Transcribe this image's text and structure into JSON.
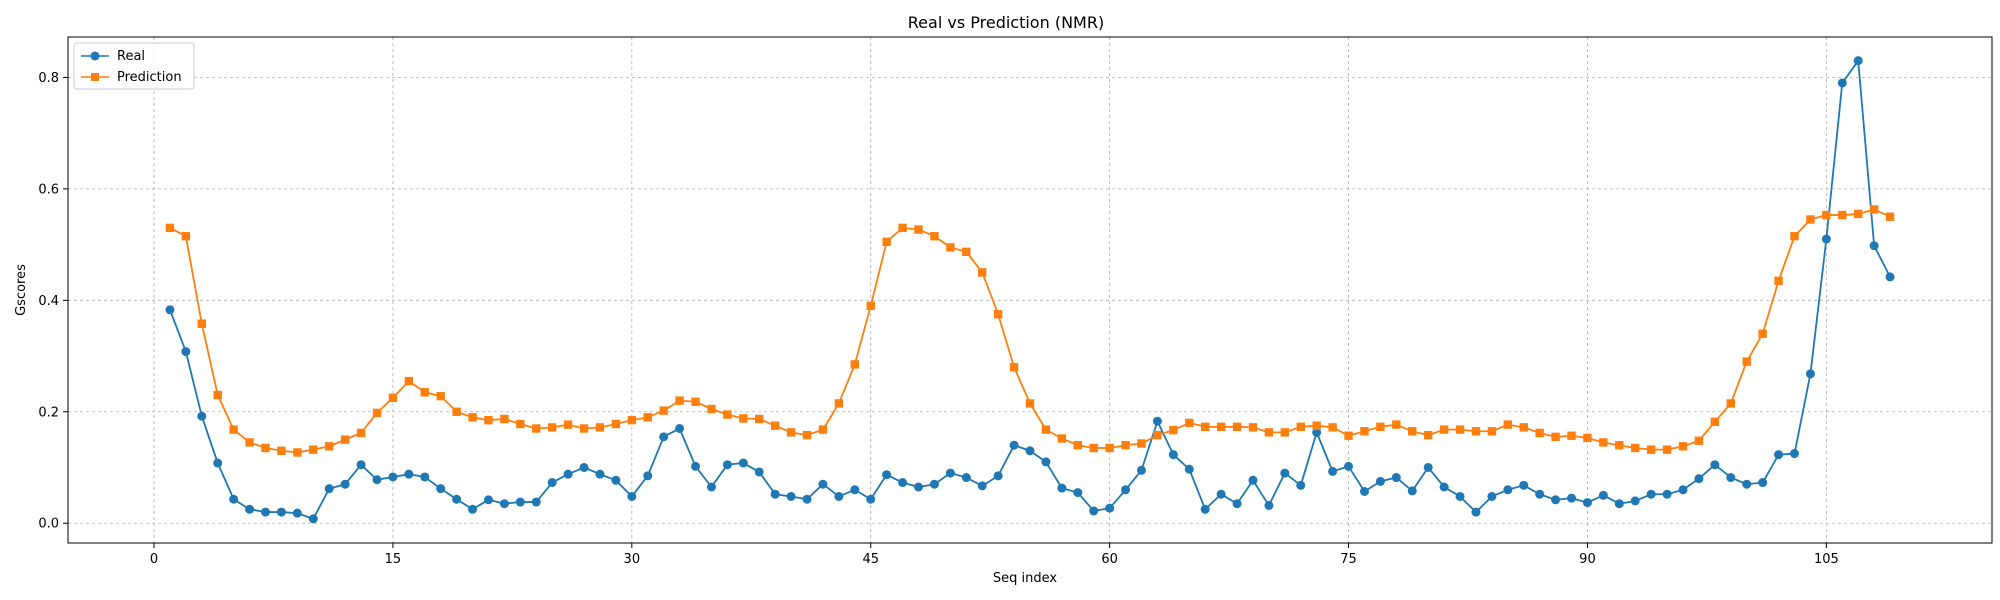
{
  "chart_data": {
    "type": "line",
    "title": "Real vs Prediction (NMR)",
    "xlabel": "Seq index",
    "ylabel": "Gscores",
    "xlim": [
      -5.4,
      115.4
    ],
    "ylim": [
      -0.0355,
      0.8725
    ],
    "xticks": [
      0,
      15,
      30,
      45,
      60,
      75,
      90,
      105
    ],
    "yticks": [
      0.0,
      0.2,
      0.4,
      0.6,
      0.8
    ],
    "ytick_labels": [
      "0.0",
      "0.2",
      "0.4",
      "0.6",
      "0.8"
    ],
    "grid": true,
    "legend_position": "top-left",
    "x": [
      1,
      2,
      3,
      4,
      5,
      6,
      7,
      8,
      9,
      10,
      11,
      12,
      13,
      14,
      15,
      16,
      17,
      18,
      19,
      20,
      21,
      22,
      23,
      24,
      25,
      26,
      27,
      28,
      29,
      30,
      31,
      32,
      33,
      34,
      35,
      36,
      37,
      38,
      39,
      40,
      41,
      42,
      43,
      44,
      45,
      46,
      47,
      48,
      49,
      50,
      51,
      52,
      53,
      54,
      55,
      56,
      57,
      58,
      59,
      60,
      61,
      62,
      63,
      64,
      65,
      66,
      67,
      68,
      69,
      70,
      71,
      72,
      73,
      74,
      75,
      76,
      77,
      78,
      79,
      80,
      81,
      82,
      83,
      84,
      85,
      86,
      87,
      88,
      89,
      90,
      91,
      92,
      93,
      94,
      95,
      96,
      97,
      98,
      99,
      100,
      101,
      102,
      103,
      104,
      105,
      106,
      107,
      108,
      109
    ],
    "series": [
      {
        "name": "Real",
        "color": "#1f77b4",
        "marker": "circle",
        "values": [
          0.383,
          0.308,
          0.192,
          0.108,
          0.043,
          0.025,
          0.02,
          0.02,
          0.018,
          0.008,
          0.062,
          0.07,
          0.105,
          0.078,
          0.083,
          0.088,
          0.083,
          0.062,
          0.043,
          0.025,
          0.042,
          0.035,
          0.038,
          0.038,
          0.073,
          0.088,
          0.1,
          0.088,
          0.077,
          0.048,
          0.085,
          0.155,
          0.17,
          0.102,
          0.065,
          0.105,
          0.108,
          0.092,
          0.052,
          0.048,
          0.043,
          0.07,
          0.048,
          0.06,
          0.043,
          0.087,
          0.073,
          0.065,
          0.07,
          0.09,
          0.082,
          0.067,
          0.085,
          0.14,
          0.13,
          0.11,
          0.063,
          0.055,
          0.022,
          0.027,
          0.06,
          0.095,
          0.183,
          0.123,
          0.097,
          0.025,
          0.052,
          0.035,
          0.077,
          0.032,
          0.09,
          0.068,
          0.163,
          0.093,
          0.102,
          0.057,
          0.075,
          0.082,
          0.058,
          0.1,
          0.065,
          0.048,
          0.02,
          0.048,
          0.06,
          0.068,
          0.052,
          0.042,
          0.045,
          0.037,
          0.05,
          0.035,
          0.04,
          0.052,
          0.052,
          0.06,
          0.08,
          0.105,
          0.082,
          0.07,
          0.073,
          0.123,
          0.125,
          0.268,
          0.51,
          0.79,
          0.83,
          0.498,
          0.442
        ]
      },
      {
        "name": "Prediction",
        "color": "#ff7f0e",
        "marker": "square",
        "values": [
          0.53,
          0.515,
          0.358,
          0.23,
          0.168,
          0.145,
          0.135,
          0.13,
          0.127,
          0.132,
          0.138,
          0.15,
          0.162,
          0.198,
          0.225,
          0.255,
          0.235,
          0.228,
          0.2,
          0.19,
          0.185,
          0.187,
          0.178,
          0.17,
          0.172,
          0.177,
          0.17,
          0.172,
          0.178,
          0.185,
          0.19,
          0.202,
          0.22,
          0.218,
          0.205,
          0.195,
          0.188,
          0.187,
          0.175,
          0.163,
          0.158,
          0.168,
          0.215,
          0.285,
          0.39,
          0.505,
          0.53,
          0.527,
          0.515,
          0.495,
          0.487,
          0.45,
          0.375,
          0.28,
          0.215,
          0.168,
          0.152,
          0.14,
          0.135,
          0.135,
          0.14,
          0.143,
          0.158,
          0.167,
          0.18,
          0.173,
          0.173,
          0.173,
          0.172,
          0.163,
          0.163,
          0.173,
          0.175,
          0.172,
          0.157,
          0.165,
          0.173,
          0.177,
          0.165,
          0.158,
          0.168,
          0.168,
          0.165,
          0.165,
          0.177,
          0.172,
          0.162,
          0.155,
          0.157,
          0.153,
          0.145,
          0.14,
          0.135,
          0.132,
          0.132,
          0.138,
          0.148,
          0.182,
          0.215,
          0.29,
          0.34,
          0.435,
          0.515,
          0.545,
          0.553,
          0.553,
          0.555,
          0.563,
          0.55
        ]
      }
    ]
  }
}
